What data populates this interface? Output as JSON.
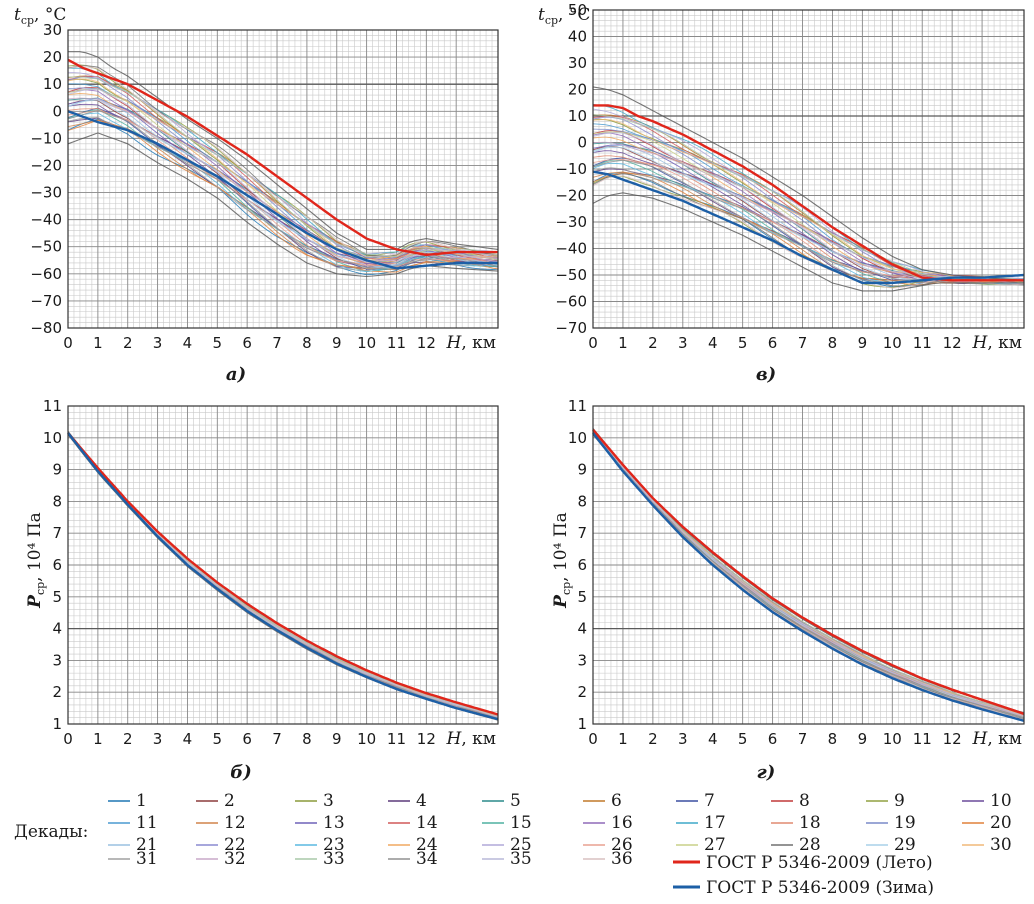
{
  "chart_data": [
    {
      "id": "a",
      "caption": "а)",
      "type": "line",
      "ylabel_main": "t",
      "ylabel_sub": "ср",
      "ylabel_unit": ", °С",
      "xlabel_main": "H",
      "xlabel_unit": ", км",
      "xlim": [
        0,
        14.4
      ],
      "ylim": [
        -80,
        30
      ],
      "xticks": [
        "0",
        "1",
        "2",
        "3",
        "4",
        "5",
        "6",
        "7",
        "8",
        "9",
        "10",
        "11",
        "12"
      ],
      "yticks": [
        "30",
        "20",
        "10",
        "0",
        "−10",
        "−20",
        "−30",
        "−40",
        "−50",
        "−60",
        "−70",
        "−80"
      ],
      "ytick_values": [
        30,
        20,
        10,
        0,
        -10,
        -20,
        -30,
        -40,
        -50,
        -60,
        -70,
        -80
      ],
      "envelope": {
        "x": [
          0,
          0.5,
          1,
          1.5,
          2,
          3,
          4,
          5,
          6,
          7,
          8,
          9,
          10,
          11,
          11.5,
          12,
          13,
          14.4
        ],
        "upper": [
          22,
          22,
          20,
          16,
          13,
          5,
          -3,
          -10,
          -18,
          -27,
          -36,
          -45,
          -51,
          -51,
          -48,
          -47,
          -49,
          -51
        ],
        "lower": [
          -12,
          -10,
          -8,
          -10,
          -12,
          -19,
          -25,
          -32,
          -41,
          -49,
          -56,
          -60,
          -61,
          -60,
          -58,
          -57,
          -58,
          -59
        ]
      },
      "series": [
        {
          "name": "ГОСТ Р 5346-2009 (Лето)",
          "color": "#e0261b",
          "x": [
            0,
            0.5,
            1,
            2,
            3,
            4,
            5,
            6,
            7,
            8,
            9,
            10,
            11,
            12,
            13,
            14.4
          ],
          "y": [
            19,
            16,
            14,
            10,
            4,
            -2,
            -9,
            -16,
            -24,
            -32,
            -40,
            -47,
            -51,
            -53,
            -52,
            -52
          ]
        },
        {
          "name": "ГОСТ Р 5346-2009 (Зима)",
          "color": "#1d5fa6",
          "x": [
            0,
            0.5,
            1,
            2,
            3,
            4,
            5,
            6,
            7,
            8,
            9,
            10,
            11,
            12,
            13,
            14.4
          ],
          "y": [
            0,
            -2,
            -4,
            -7,
            -12,
            -18,
            -24,
            -31,
            -38,
            -45,
            -51,
            -55,
            -58,
            -57,
            -56,
            -56
          ]
        }
      ]
    },
    {
      "id": "v",
      "caption": "в)",
      "type": "line",
      "ylabel_main": "t",
      "ylabel_sub": "ср",
      "ylabel_unit": ", °С",
      "xlabel_main": "H",
      "xlabel_unit": ", км",
      "xlim": [
        0,
        14.4
      ],
      "ylim": [
        -70,
        50
      ],
      "xticks": [
        "0",
        "1",
        "2",
        "3",
        "4",
        "5",
        "6",
        "7",
        "8",
        "9",
        "10",
        "11",
        "12"
      ],
      "yticks": [
        "50",
        "40",
        "30",
        "20",
        "10",
        "0",
        "−10",
        "−20",
        "−30",
        "−40",
        "−50",
        "−60",
        "−70"
      ],
      "ytick_values": [
        50,
        40,
        30,
        20,
        10,
        0,
        -10,
        -20,
        -30,
        -40,
        -50,
        -60,
        -70
      ],
      "envelope": {
        "x": [
          0,
          0.5,
          1,
          1.5,
          2,
          3,
          4,
          5,
          6,
          7,
          8,
          9,
          10,
          11,
          11.5,
          12,
          13,
          14.4
        ],
        "upper": [
          21,
          20,
          18,
          15,
          12,
          6,
          0,
          -6,
          -13,
          -20,
          -28,
          -36,
          -43,
          -48,
          -49,
          -50,
          -51,
          -52
        ],
        "lower": [
          -23,
          -20,
          -19,
          -20,
          -21,
          -25,
          -30,
          -35,
          -41,
          -47,
          -53,
          -56,
          -56,
          -54,
          -53,
          -53,
          -53,
          -53
        ]
      },
      "series": [
        {
          "name": "ГОСТ Р 5346-2009 (Лето)",
          "color": "#e0261b",
          "x": [
            0,
            0.5,
            1,
            1.5,
            2,
            3,
            4,
            5,
            6,
            7,
            8,
            9,
            10,
            11,
            12,
            13,
            14.4
          ],
          "y": [
            14,
            14,
            13,
            10,
            8,
            3,
            -3,
            -9,
            -16,
            -24,
            -32,
            -39,
            -46,
            -51,
            -52,
            -52,
            -52
          ]
        },
        {
          "name": "ГОСТ Р 5346-2009 (Зима)",
          "color": "#1d5fa6",
          "x": [
            0,
            0.5,
            1,
            2,
            3,
            4,
            5,
            6,
            7,
            8,
            9,
            10,
            11,
            12,
            13,
            14.4
          ],
          "y": [
            -11,
            -12,
            -14,
            -18,
            -22,
            -27,
            -32,
            -37,
            -43,
            -48,
            -53,
            -53,
            -52,
            -51,
            -51,
            -50
          ]
        }
      ]
    },
    {
      "id": "b",
      "caption": "б)",
      "type": "line",
      "ylabel_main": "P",
      "ylabel_sub": "ср",
      "ylabel_unit": ", 10⁴ Па",
      "xlabel_main": "H",
      "xlabel_unit": ", км",
      "xlim": [
        0,
        14.4
      ],
      "ylim": [
        1,
        11
      ],
      "xticks": [
        "0",
        "1",
        "2",
        "3",
        "4",
        "5",
        "6",
        "7",
        "8",
        "9",
        "10",
        "11",
        "12"
      ],
      "yticks": [
        "11",
        "10",
        "9",
        "8",
        "7",
        "6",
        "5",
        "4",
        "3",
        "2",
        "1"
      ],
      "ytick_values": [
        11,
        10,
        9,
        8,
        7,
        6,
        5,
        4,
        3,
        2,
        1
      ],
      "envelope": {
        "x": [
          0,
          1,
          2,
          3,
          4,
          5,
          6,
          7,
          8,
          9,
          10,
          11,
          12,
          13,
          14.4
        ],
        "upper": [
          10.2,
          9.05,
          8.0,
          7.05,
          6.2,
          5.45,
          4.75,
          4.15,
          3.6,
          3.1,
          2.68,
          2.3,
          1.97,
          1.68,
          1.3
        ],
        "lower": [
          10.1,
          8.9,
          7.85,
          6.85,
          5.95,
          5.2,
          4.5,
          3.9,
          3.35,
          2.86,
          2.45,
          2.08,
          1.77,
          1.48,
          1.12
        ]
      },
      "series": [
        {
          "name": "ГОСТ Р 5346-2009 (Лето)",
          "color": "#e0261b",
          "x": [
            0,
            1,
            2,
            3,
            4,
            5,
            6,
            7,
            8,
            9,
            10,
            11,
            12,
            13,
            14.4
          ],
          "y": [
            10.15,
            9.05,
            8.0,
            7.05,
            6.2,
            5.45,
            4.78,
            4.17,
            3.62,
            3.13,
            2.69,
            2.3,
            1.97,
            1.68,
            1.3
          ]
        },
        {
          "name": "ГОСТ Р 5346-2009 (Зима)",
          "color": "#1d5fa6",
          "x": [
            0,
            1,
            2,
            3,
            4,
            5,
            6,
            7,
            8,
            9,
            10,
            11,
            12,
            13,
            14.4
          ],
          "y": [
            10.15,
            8.95,
            7.9,
            6.9,
            6.0,
            5.25,
            4.55,
            3.95,
            3.4,
            2.9,
            2.48,
            2.1,
            1.79,
            1.5,
            1.15
          ]
        }
      ]
    },
    {
      "id": "g",
      "caption": "г)",
      "type": "line",
      "ylabel_main": "P",
      "ylabel_sub": "ср",
      "ylabel_unit": ", 10⁴ Па",
      "xlabel_main": "H",
      "xlabel_unit": ", км",
      "xlim": [
        0,
        14.4
      ],
      "ylim": [
        1,
        11
      ],
      "xticks": [
        "0",
        "1",
        "2",
        "3",
        "4",
        "5",
        "6",
        "7",
        "8",
        "9",
        "10",
        "11",
        "12"
      ],
      "yticks": [
        "11",
        "10",
        "9",
        "8",
        "7",
        "6",
        "5",
        "4",
        "3",
        "2",
        "1"
      ],
      "ytick_values": [
        11,
        10,
        9,
        8,
        7,
        6,
        5,
        4,
        3,
        2,
        1
      ],
      "envelope": {
        "x": [
          0,
          1,
          2,
          3,
          4,
          5,
          6,
          7,
          8,
          9,
          10,
          11,
          12,
          13,
          14.4
        ],
        "upper": [
          10.3,
          9.15,
          8.1,
          7.15,
          6.35,
          5.6,
          4.9,
          4.3,
          3.75,
          3.25,
          2.8,
          2.4,
          2.05,
          1.75,
          1.35
        ],
        "lower": [
          10.1,
          8.95,
          7.85,
          6.85,
          6.0,
          5.2,
          4.5,
          3.9,
          3.35,
          2.85,
          2.42,
          2.05,
          1.73,
          1.45,
          1.1
        ]
      },
      "series": [
        {
          "name": "ГОСТ Р 5346-2009 (Лето)",
          "color": "#e0261b",
          "x": [
            0,
            1,
            2,
            3,
            4,
            5,
            6,
            7,
            8,
            9,
            10,
            11,
            12,
            13,
            14.4
          ],
          "y": [
            10.25,
            9.15,
            8.1,
            7.2,
            6.4,
            5.65,
            4.95,
            4.35,
            3.8,
            3.3,
            2.85,
            2.43,
            2.08,
            1.76,
            1.32
          ]
        },
        {
          "name": "ГОСТ Р 5346-2009 (Зима)",
          "color": "#1d5fa6",
          "x": [
            0,
            1,
            2,
            3,
            4,
            5,
            6,
            7,
            8,
            9,
            10,
            11,
            12,
            13,
            14.4
          ],
          "y": [
            10.15,
            8.95,
            7.88,
            6.88,
            6.0,
            5.22,
            4.52,
            3.92,
            3.37,
            2.87,
            2.44,
            2.07,
            1.74,
            1.46,
            1.1
          ]
        }
      ]
    }
  ],
  "legend": {
    "title": "Декады:",
    "decades": [
      {
        "label": "1",
        "color": "#1f77b4"
      },
      {
        "label": "2",
        "color": "#8c3b3b"
      },
      {
        "label": "3",
        "color": "#8a9a3a"
      },
      {
        "label": "4",
        "color": "#5b3a7a"
      },
      {
        "label": "5",
        "color": "#2a8a8a"
      },
      {
        "label": "6",
        "color": "#c07828"
      },
      {
        "label": "7",
        "color": "#3a4ea0"
      },
      {
        "label": "8",
        "color": "#c03838"
      },
      {
        "label": "9",
        "color": "#90a040"
      },
      {
        "label": "10",
        "color": "#6a4a9a"
      },
      {
        "label": "11",
        "color": "#4a9ad0"
      },
      {
        "label": "12",
        "color": "#d0844a"
      },
      {
        "label": "13",
        "color": "#6f62b8"
      },
      {
        "label": "14",
        "color": "#d05858"
      },
      {
        "label": "15",
        "color": "#4fb0a0"
      },
      {
        "label": "16",
        "color": "#8f6ab8"
      },
      {
        "label": "17",
        "color": "#3fa8c8"
      },
      {
        "label": "18",
        "color": "#e08a70"
      },
      {
        "label": "19",
        "color": "#7a8ac8"
      },
      {
        "label": "20",
        "color": "#e0803a"
      },
      {
        "label": "21",
        "color": "#9ac0e0"
      },
      {
        "label": "22",
        "color": "#8a8ad0"
      },
      {
        "label": "23",
        "color": "#5ab8e0"
      },
      {
        "label": "24",
        "color": "#f0a860"
      },
      {
        "label": "25",
        "color": "#b0a8d8"
      },
      {
        "label": "26",
        "color": "#e8a090"
      },
      {
        "label": "27",
        "color": "#c8d088"
      },
      {
        "label": "28",
        "color": "#707070"
      },
      {
        "label": "29",
        "color": "#a8d0e8"
      },
      {
        "label": "30",
        "color": "#f0b878"
      },
      {
        "label": "31",
        "color": "#a0a0a0"
      },
      {
        "label": "32",
        "color": "#c8a8c8"
      },
      {
        "label": "33",
        "color": "#a8c8a8"
      },
      {
        "label": "34",
        "color": "#909090"
      },
      {
        "label": "35",
        "color": "#b8b8d8"
      },
      {
        "label": "36",
        "color": "#d8c0c0"
      }
    ],
    "gost_summer": {
      "label": "ГОСТ Р 5346-2009 (Лето)",
      "color": "#e0261b"
    },
    "gost_winter": {
      "label": "ГОСТ Р 5346-2009 (Зима)",
      "color": "#1d5fa6"
    }
  }
}
